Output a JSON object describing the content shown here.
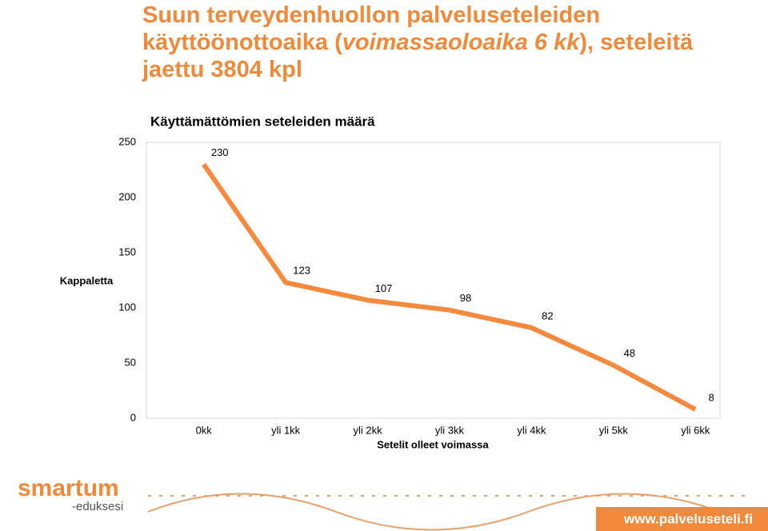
{
  "header": {
    "title_parts": [
      "Suun terveydenhuollon palveluseteleiden käyttöönottoaika (",
      "voimassaoloaika 6 kk",
      "), seteleitä jaettu 3804 kpl"
    ]
  },
  "chart_data": {
    "type": "line",
    "title": "Käyttämättömien seteleiden määrä",
    "y_label": "Kappaletta",
    "x_label": "Setelit olleet voimassa",
    "categories": [
      "0kk",
      "yli 1kk",
      "yli 2kk",
      "yli 3kk",
      "yli 4kk",
      "yli 5kk",
      "yli 6kk"
    ],
    "values": [
      230,
      123,
      107,
      98,
      82,
      48,
      8
    ],
    "color": "#f5893d",
    "ylim": [
      0,
      250
    ],
    "yticks": [
      0,
      50,
      100,
      150,
      200,
      250
    ],
    "grid": false
  },
  "footer": {
    "logo": "smartum",
    "logo_sub": "-eduksesi",
    "url": "www.palveluseteli.fi"
  }
}
